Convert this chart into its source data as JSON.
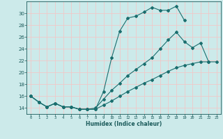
{
  "xlabel": "Humidex (Indice chaleur)",
  "bg_color": "#cceaea",
  "grid_color": "#f0c8c8",
  "line_color": "#1a6e6e",
  "xlim": [
    -0.5,
    23.5
  ],
  "ylim": [
    13.0,
    32.0
  ],
  "xticks": [
    0,
    1,
    2,
    3,
    4,
    5,
    6,
    7,
    8,
    9,
    10,
    11,
    12,
    13,
    14,
    15,
    16,
    17,
    18,
    19,
    20,
    21,
    22,
    23
  ],
  "yticks": [
    14,
    16,
    18,
    20,
    22,
    24,
    26,
    28,
    30
  ],
  "s1x": [
    0,
    1,
    2,
    3,
    4,
    5,
    6,
    7,
    8,
    9,
    10,
    11,
    12,
    13,
    14,
    15,
    16,
    17,
    18,
    19
  ],
  "s1y": [
    16,
    15,
    14.2,
    14.8,
    14.2,
    14.2,
    13.8,
    13.8,
    13.8,
    16.8,
    22.5,
    27.0,
    29.2,
    29.5,
    30.2,
    31.0,
    30.5,
    30.5,
    31.2,
    28.8
  ],
  "s2x": [
    0,
    1,
    2,
    3,
    4,
    5,
    6,
    7,
    8,
    9,
    10,
    11,
    12,
    13,
    14,
    15,
    16,
    17,
    18,
    19,
    20,
    21,
    22
  ],
  "s2y": [
    16,
    15,
    14.2,
    14.8,
    14.2,
    14.2,
    13.8,
    13.8,
    14.0,
    15.5,
    17.0,
    18.2,
    19.5,
    20.5,
    21.5,
    22.5,
    24.0,
    25.5,
    26.8,
    25.2,
    24.2,
    25.0,
    21.8
  ],
  "s3x": [
    0,
    1,
    2,
    3,
    4,
    5,
    6,
    7,
    8,
    9,
    10,
    11,
    12,
    13,
    14,
    15,
    16,
    17,
    18,
    19,
    20,
    21,
    22,
    23
  ],
  "s3y": [
    16,
    15,
    14.2,
    14.8,
    14.2,
    14.2,
    13.8,
    13.8,
    13.8,
    14.5,
    15.2,
    16.0,
    16.8,
    17.5,
    18.2,
    18.8,
    19.5,
    20.2,
    20.8,
    21.2,
    21.5,
    21.8,
    21.8,
    21.8
  ]
}
